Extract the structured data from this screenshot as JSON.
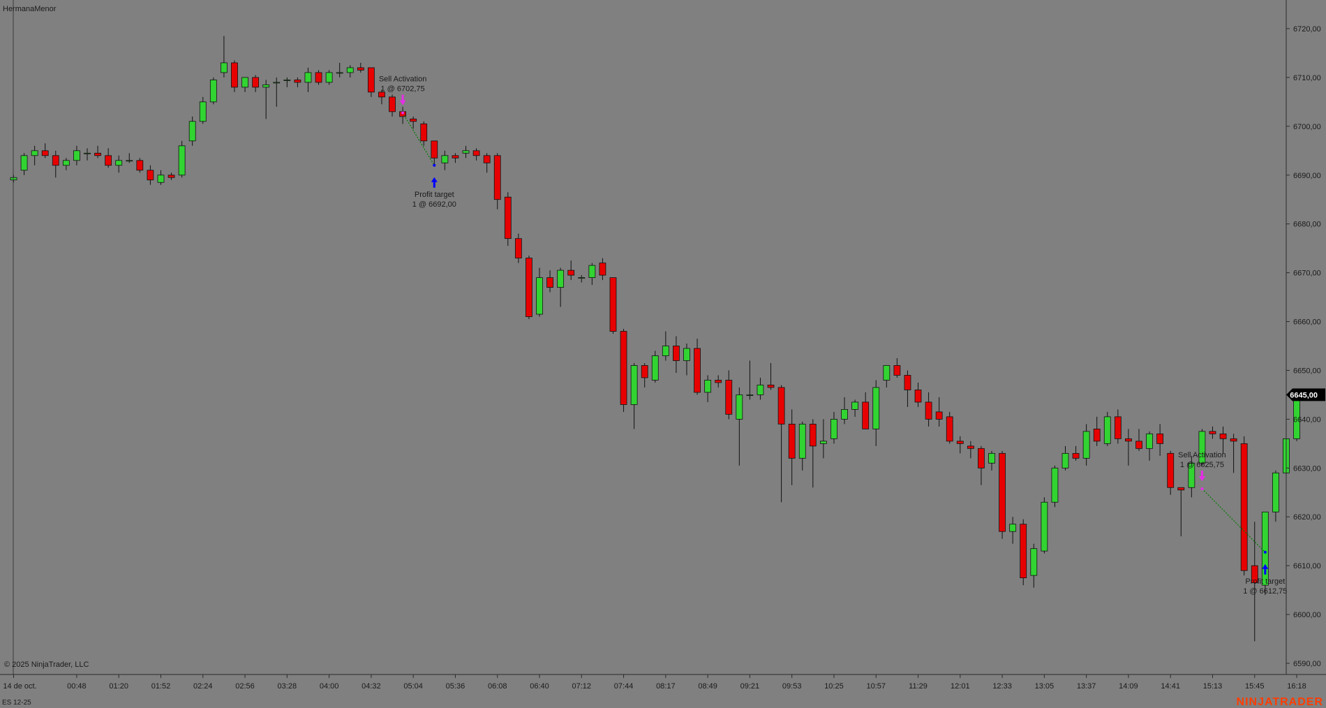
{
  "window": {
    "title": "HermanaMenor",
    "copyright": "© 2025 NinjaTrader, LLC",
    "instrument": "ES 12-25",
    "brand": "NINJATRADER",
    "current_price_label": "6645,00"
  },
  "colors": {
    "background": "#808080",
    "up": "#32d432",
    "down": "#e80000",
    "wick": "#111111",
    "entry_arrow": "#e62ee6",
    "exit_arrow": "#0000ff",
    "trade_line": "#007a00",
    "brand": "#ff3c00",
    "price_badge": "#000000"
  },
  "chart_data": {
    "type": "candlestick",
    "y_axis": {
      "min": 6585,
      "max": 6725,
      "ticks": [
        "6590,00",
        "6600,00",
        "6610,00",
        "6620,00",
        "6630,00",
        "6640,00",
        "6650,00",
        "6660,00",
        "6670,00",
        "6680,00",
        "6690,00",
        "6700,00",
        "6710,00",
        "6720,00"
      ],
      "position": "right"
    },
    "x_axis": {
      "labels": [
        {
          "i": 0,
          "label": "14 de oct."
        },
        {
          "i": 6,
          "label": "00:48"
        },
        {
          "i": 10,
          "label": "01:20"
        },
        {
          "i": 14,
          "label": "01:52"
        },
        {
          "i": 18,
          "label": "02:24"
        },
        {
          "i": 22,
          "label": "02:56"
        },
        {
          "i": 26,
          "label": "03:28"
        },
        {
          "i": 30,
          "label": "04:00"
        },
        {
          "i": 34,
          "label": "04:32"
        },
        {
          "i": 38,
          "label": "05:04"
        },
        {
          "i": 42,
          "label": "05:36"
        },
        {
          "i": 46,
          "label": "06:08"
        },
        {
          "i": 50,
          "label": "06:40"
        },
        {
          "i": 54,
          "label": "07:12"
        },
        {
          "i": 58,
          "label": "07:44"
        },
        {
          "i": 62,
          "label": "08:17"
        },
        {
          "i": 66,
          "label": "08:49"
        },
        {
          "i": 70,
          "label": "09:21"
        },
        {
          "i": 74,
          "label": "09:53"
        },
        {
          "i": 78,
          "label": "10:25"
        },
        {
          "i": 82,
          "label": "10:57"
        },
        {
          "i": 86,
          "label": "11:29"
        },
        {
          "i": 90,
          "label": "12:01"
        },
        {
          "i": 94,
          "label": "12:33"
        },
        {
          "i": 98,
          "label": "13:05"
        },
        {
          "i": 102,
          "label": "13:37"
        },
        {
          "i": 106,
          "label": "14:09"
        },
        {
          "i": 110,
          "label": "14:41"
        },
        {
          "i": 114,
          "label": "15:13"
        },
        {
          "i": 118,
          "label": "15:45"
        },
        {
          "i": 122,
          "label": "16:18"
        }
      ]
    },
    "grid": false,
    "candles": [
      {
        "o": 6689.0,
        "h": 6690.0,
        "l": 6688.5,
        "c": 6689.5
      },
      {
        "o": 6691.0,
        "h": 6694.5,
        "l": 6690.0,
        "c": 6694.0
      },
      {
        "o": 6694.0,
        "h": 6696.0,
        "l": 6692.0,
        "c": 6695.0
      },
      {
        "o": 6695.0,
        "h": 6696.5,
        "l": 6693.5,
        "c": 6694.0
      },
      {
        "o": 6694.0,
        "h": 6695.0,
        "l": 6689.5,
        "c": 6692.0
      },
      {
        "o": 6692.0,
        "h": 6693.5,
        "l": 6691.0,
        "c": 6693.0
      },
      {
        "o": 6693.0,
        "h": 6696.0,
        "l": 6692.0,
        "c": 6695.0
      },
      {
        "o": 6694.5,
        "h": 6695.5,
        "l": 6693.0,
        "c": 6694.5
      },
      {
        "o": 6694.5,
        "h": 6696.0,
        "l": 6693.5,
        "c": 6694.0
      },
      {
        "o": 6694.0,
        "h": 6695.5,
        "l": 6691.5,
        "c": 6692.0
      },
      {
        "o": 6692.0,
        "h": 6694.0,
        "l": 6690.5,
        "c": 6693.0
      },
      {
        "o": 6693.0,
        "h": 6694.5,
        "l": 6692.5,
        "c": 6693.0
      },
      {
        "o": 6693.0,
        "h": 6693.5,
        "l": 6690.5,
        "c": 6691.0
      },
      {
        "o": 6691.0,
        "h": 6692.0,
        "l": 6688.0,
        "c": 6689.0
      },
      {
        "o": 6688.5,
        "h": 6691.0,
        "l": 6688.0,
        "c": 6690.0
      },
      {
        "o": 6690.0,
        "h": 6690.5,
        "l": 6689.0,
        "c": 6689.5
      },
      {
        "o": 6690.0,
        "h": 6697.0,
        "l": 6689.5,
        "c": 6696.0
      },
      {
        "o": 6697.0,
        "h": 6702.0,
        "l": 6696.0,
        "c": 6701.0
      },
      {
        "o": 6701.0,
        "h": 6706.0,
        "l": 6700.5,
        "c": 6705.0
      },
      {
        "o": 6705.0,
        "h": 6710.0,
        "l": 6704.5,
        "c": 6709.5
      },
      {
        "o": 6711.0,
        "h": 6718.5,
        "l": 6710.0,
        "c": 6713.0
      },
      {
        "o": 6713.0,
        "h": 6713.5,
        "l": 6707.0,
        "c": 6708.0
      },
      {
        "o": 6708.0,
        "h": 6710.0,
        "l": 6707.0,
        "c": 6710.0
      },
      {
        "o": 6710.0,
        "h": 6710.5,
        "l": 6707.0,
        "c": 6708.0
      },
      {
        "o": 6708.0,
        "h": 6709.5,
        "l": 6701.5,
        "c": 6708.5
      },
      {
        "o": 6709.0,
        "h": 6710.0,
        "l": 6704.0,
        "c": 6709.0
      },
      {
        "o": 6709.5,
        "h": 6710.0,
        "l": 6708.0,
        "c": 6709.5
      },
      {
        "o": 6709.5,
        "h": 6710.0,
        "l": 6708.0,
        "c": 6709.0
      },
      {
        "o": 6709.0,
        "h": 6712.0,
        "l": 6707.0,
        "c": 6711.0
      },
      {
        "o": 6711.0,
        "h": 6711.5,
        "l": 6708.5,
        "c": 6709.0
      },
      {
        "o": 6709.0,
        "h": 6711.5,
        "l": 6708.5,
        "c": 6711.0
      },
      {
        "o": 6711.0,
        "h": 6713.0,
        "l": 6710.0,
        "c": 6711.0
      },
      {
        "o": 6711.0,
        "h": 6712.5,
        "l": 6710.0,
        "c": 6712.0
      },
      {
        "o": 6712.0,
        "h": 6713.0,
        "l": 6711.0,
        "c": 6711.5
      },
      {
        "o": 6712.0,
        "h": 6712.0,
        "l": 6706.0,
        "c": 6707.0
      },
      {
        "o": 6707.0,
        "h": 6707.5,
        "l": 6704.5,
        "c": 6706.0
      },
      {
        "o": 6706.0,
        "h": 6706.5,
        "l": 6702.0,
        "c": 6703.0
      },
      {
        "o": 6703.0,
        "h": 6704.0,
        "l": 6700.5,
        "c": 6702.0
      },
      {
        "o": 6701.5,
        "h": 6702.0,
        "l": 6699.5,
        "c": 6701.0
      },
      {
        "o": 6700.5,
        "h": 6701.0,
        "l": 6696.0,
        "c": 6697.0
      },
      {
        "o": 6697.0,
        "h": 6697.0,
        "l": 6692.0,
        "c": 6693.5
      },
      {
        "o": 6692.5,
        "h": 6695.0,
        "l": 6691.0,
        "c": 6694.0
      },
      {
        "o": 6694.0,
        "h": 6694.5,
        "l": 6692.5,
        "c": 6693.5
      },
      {
        "o": 6694.5,
        "h": 6696.0,
        "l": 6693.5,
        "c": 6695.0
      },
      {
        "o": 6695.0,
        "h": 6695.5,
        "l": 6693.0,
        "c": 6694.0
      },
      {
        "o": 6694.0,
        "h": 6694.5,
        "l": 6690.5,
        "c": 6692.5
      },
      {
        "o": 6694.0,
        "h": 6694.5,
        "l": 6683.0,
        "c": 6685.0
      },
      {
        "o": 6685.5,
        "h": 6686.5,
        "l": 6675.5,
        "c": 6677.0
      },
      {
        "o": 6677.0,
        "h": 6678.0,
        "l": 6672.0,
        "c": 6673.0
      },
      {
        "o": 6673.0,
        "h": 6673.5,
        "l": 6660.5,
        "c": 6661.0
      },
      {
        "o": 6661.5,
        "h": 6671.0,
        "l": 6661.0,
        "c": 6669.0
      },
      {
        "o": 6669.0,
        "h": 6670.5,
        "l": 6666.0,
        "c": 6667.0
      },
      {
        "o": 6667.0,
        "h": 6671.0,
        "l": 6663.0,
        "c": 6670.5
      },
      {
        "o": 6670.5,
        "h": 6672.5,
        "l": 6668.5,
        "c": 6669.5
      },
      {
        "o": 6669.0,
        "h": 6669.5,
        "l": 6668.0,
        "c": 6669.0
      },
      {
        "o": 6669.0,
        "h": 6672.0,
        "l": 6667.5,
        "c": 6671.5
      },
      {
        "o": 6672.0,
        "h": 6673.0,
        "l": 6668.5,
        "c": 6669.5
      },
      {
        "o": 6669.0,
        "h": 6669.0,
        "l": 6657.5,
        "c": 6658.0
      },
      {
        "o": 6658.0,
        "h": 6658.5,
        "l": 6641.5,
        "c": 6643.0
      },
      {
        "o": 6643.0,
        "h": 6651.5,
        "l": 6638.0,
        "c": 6651.0
      },
      {
        "o": 6651.0,
        "h": 6651.5,
        "l": 6646.5,
        "c": 6648.5
      },
      {
        "o": 6648.0,
        "h": 6654.0,
        "l": 6647.5,
        "c": 6653.0
      },
      {
        "o": 6653.0,
        "h": 6658.0,
        "l": 6652.0,
        "c": 6655.0
      },
      {
        "o": 6655.0,
        "h": 6657.0,
        "l": 6649.5,
        "c": 6652.0
      },
      {
        "o": 6652.0,
        "h": 6655.5,
        "l": 6649.0,
        "c": 6654.5
      },
      {
        "o": 6654.5,
        "h": 6656.5,
        "l": 6645.0,
        "c": 6645.5
      },
      {
        "o": 6645.5,
        "h": 6649.0,
        "l": 6643.5,
        "c": 6648.0
      },
      {
        "o": 6648.0,
        "h": 6649.0,
        "l": 6646.5,
        "c": 6647.5
      },
      {
        "o": 6648.0,
        "h": 6650.0,
        "l": 6640.0,
        "c": 6641.0
      },
      {
        "o": 6640.0,
        "h": 6646.5,
        "l": 6630.5,
        "c": 6645.0
      },
      {
        "o": 6645.0,
        "h": 6652.0,
        "l": 6644.0,
        "c": 6645.0
      },
      {
        "o": 6645.0,
        "h": 6648.5,
        "l": 6644.0,
        "c": 6647.0
      },
      {
        "o": 6647.0,
        "h": 6651.5,
        "l": 6646.0,
        "c": 6646.5
      },
      {
        "o": 6646.5,
        "h": 6647.0,
        "l": 6623.0,
        "c": 6639.0
      },
      {
        "o": 6639.0,
        "h": 6642.0,
        "l": 6626.5,
        "c": 6632.0
      },
      {
        "o": 6632.0,
        "h": 6639.5,
        "l": 6629.5,
        "c": 6639.0
      },
      {
        "o": 6639.0,
        "h": 6640.0,
        "l": 6626.0,
        "c": 6634.5
      },
      {
        "o": 6635.0,
        "h": 6640.0,
        "l": 6632.0,
        "c": 6635.5
      },
      {
        "o": 6636.0,
        "h": 6641.5,
        "l": 6635.0,
        "c": 6640.0
      },
      {
        "o": 6640.0,
        "h": 6644.5,
        "l": 6639.0,
        "c": 6642.0
      },
      {
        "o": 6642.0,
        "h": 6644.0,
        "l": 6640.5,
        "c": 6643.5
      },
      {
        "o": 6643.5,
        "h": 6645.5,
        "l": 6638.0,
        "c": 6638.0
      },
      {
        "o": 6638.0,
        "h": 6648.0,
        "l": 6634.5,
        "c": 6646.5
      },
      {
        "o": 6648.0,
        "h": 6651.0,
        "l": 6646.5,
        "c": 6651.0
      },
      {
        "o": 6651.0,
        "h": 6652.5,
        "l": 6648.5,
        "c": 6649.0
      },
      {
        "o": 6649.0,
        "h": 6650.0,
        "l": 6642.5,
        "c": 6646.0
      },
      {
        "o": 6646.0,
        "h": 6647.5,
        "l": 6642.5,
        "c": 6643.5
      },
      {
        "o": 6643.5,
        "h": 6645.5,
        "l": 6638.5,
        "c": 6640.0
      },
      {
        "o": 6641.5,
        "h": 6644.5,
        "l": 6638.5,
        "c": 6640.0
      },
      {
        "o": 6640.5,
        "h": 6641.5,
        "l": 6635.0,
        "c": 6635.5
      },
      {
        "o": 6635.5,
        "h": 6636.5,
        "l": 6633.0,
        "c": 6635.0
      },
      {
        "o": 6634.5,
        "h": 6635.5,
        "l": 6632.0,
        "c": 6634.0
      },
      {
        "o": 6634.0,
        "h": 6634.5,
        "l": 6626.5,
        "c": 6630.0
      },
      {
        "o": 6631.0,
        "h": 6633.5,
        "l": 6629.5,
        "c": 6633.0
      },
      {
        "o": 6633.0,
        "h": 6633.5,
        "l": 6615.5,
        "c": 6617.0
      },
      {
        "o": 6617.0,
        "h": 6620.0,
        "l": 6614.5,
        "c": 6618.5
      },
      {
        "o": 6618.5,
        "h": 6619.5,
        "l": 6606.0,
        "c": 6607.5
      },
      {
        "o": 6608.0,
        "h": 6614.5,
        "l": 6605.5,
        "c": 6613.5
      },
      {
        "o": 6613.0,
        "h": 6624.0,
        "l": 6612.5,
        "c": 6623.0
      },
      {
        "o": 6623.0,
        "h": 6630.5,
        "l": 6622.0,
        "c": 6630.0
      },
      {
        "o": 6630.0,
        "h": 6634.5,
        "l": 6629.5,
        "c": 6633.0
      },
      {
        "o": 6633.0,
        "h": 6634.5,
        "l": 6631.5,
        "c": 6632.0
      },
      {
        "o": 6632.0,
        "h": 6639.0,
        "l": 6630.5,
        "c": 6637.5
      },
      {
        "o": 6638.0,
        "h": 6640.5,
        "l": 6634.5,
        "c": 6635.5
      },
      {
        "o": 6635.0,
        "h": 6641.5,
        "l": 6634.5,
        "c": 6640.5
      },
      {
        "o": 6640.5,
        "h": 6642.0,
        "l": 6635.0,
        "c": 6636.0
      },
      {
        "o": 6636.0,
        "h": 6638.0,
        "l": 6630.5,
        "c": 6635.5
      },
      {
        "o": 6635.5,
        "h": 6638.0,
        "l": 6633.5,
        "c": 6634.0
      },
      {
        "o": 6634.0,
        "h": 6637.5,
        "l": 6631.5,
        "c": 6637.0
      },
      {
        "o": 6637.0,
        "h": 6639.0,
        "l": 6632.5,
        "c": 6635.0
      },
      {
        "o": 6633.0,
        "h": 6633.5,
        "l": 6624.5,
        "c": 6626.0
      },
      {
        "o": 6626.0,
        "h": 6626.0,
        "l": 6616.0,
        "c": 6625.5
      },
      {
        "o": 6626.0,
        "h": 6632.5,
        "l": 6624.0,
        "c": 6631.0
      },
      {
        "o": 6631.0,
        "h": 6638.0,
        "l": 6630.5,
        "c": 6637.5
      },
      {
        "o": 6637.5,
        "h": 6638.5,
        "l": 6636.0,
        "c": 6637.0
      },
      {
        "o": 6637.0,
        "h": 6638.5,
        "l": 6633.0,
        "c": 6636.0
      },
      {
        "o": 6636.0,
        "h": 6637.0,
        "l": 6629.0,
        "c": 6635.5
      },
      {
        "o": 6635.0,
        "h": 6636.5,
        "l": 6608.0,
        "c": 6609.0
      },
      {
        "o": 6610.0,
        "h": 6619.0,
        "l": 6594.5,
        "c": 6606.5
      },
      {
        "o": 6606.0,
        "h": 6621.0,
        "l": 6604.0,
        "c": 6621.0
      },
      {
        "o": 6621.0,
        "h": 6629.5,
        "l": 6619.0,
        "c": 6629.0
      },
      {
        "o": 6629.0,
        "h": 6641.0,
        "l": 6628.5,
        "c": 6636.0
      },
      {
        "o": 6636.0,
        "h": 6646.0,
        "l": 6635.5,
        "c": 6645.5
      }
    ],
    "trades": [
      {
        "entry_index": 37,
        "entry_price": 6702.75,
        "exit_index": 40,
        "exit_price": 6692.0,
        "entry_label": "Sell Activation",
        "entry_detail": "1 @ 6702,75",
        "exit_label": "Profit target",
        "exit_detail": "1 @ 6692,00"
      },
      {
        "entry_index": 113,
        "entry_price": 6625.75,
        "exit_index": 119,
        "exit_price": 6612.75,
        "entry_label": "Sell Activation",
        "entry_detail": "1 @ 6625,75",
        "exit_label": "Profit target",
        "exit_detail": "1 @ 6612,75"
      }
    ],
    "current_price": 6645.0
  }
}
